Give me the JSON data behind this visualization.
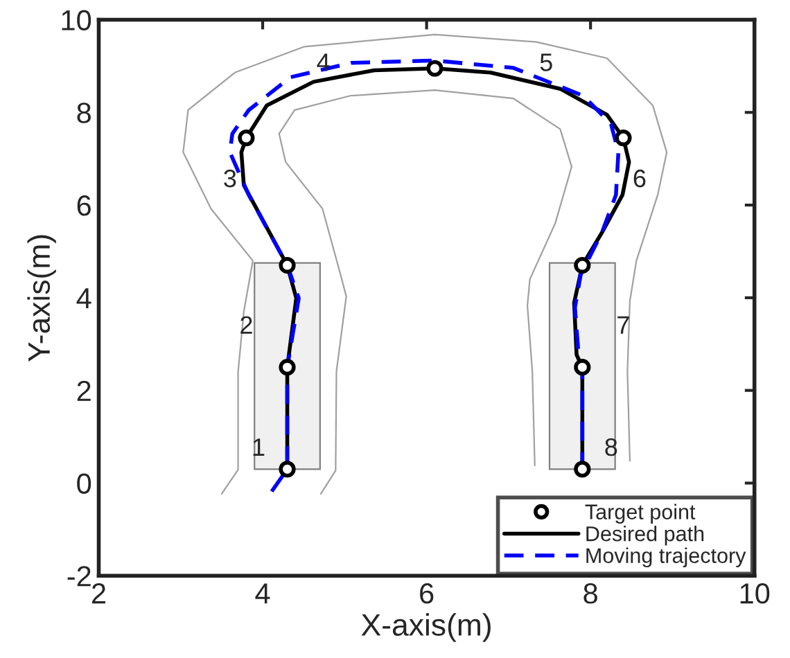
{
  "chart_data": {
    "type": "line",
    "xlabel": "X-axis(m)",
    "ylabel": "Y-axis(m)",
    "xlim": [
      2,
      10
    ],
    "ylim": [
      -2,
      10
    ],
    "xticks": [
      2,
      4,
      6,
      8,
      10
    ],
    "yticks": [
      -2,
      0,
      2,
      4,
      6,
      8,
      10
    ],
    "grid": false,
    "legend": "bottom right",
    "series": [
      {
        "type": "area",
        "color": "#f0f0f0",
        "x": [
          3.9,
          4.7,
          4.7,
          3.9,
          3.9
        ],
        "values": [
          0.3,
          0.3,
          4.75,
          4.75,
          0.3
        ]
      },
      {
        "type": "area",
        "color": "#f0f0f0",
        "x": [
          7.5,
          8.3,
          8.3,
          7.5,
          7.5
        ],
        "values": [
          0.3,
          0.3,
          4.75,
          4.75,
          0.3
        ]
      },
      {
        "type": "line",
        "color": "#a0a0a0",
        "x": [
          3.5,
          3.7,
          3.7,
          3.77,
          3.88,
          3.37,
          3.03,
          3.09,
          3.66,
          4.51,
          6.1,
          7.34,
          8.2,
          8.76,
          8.93,
          8.82,
          8.56,
          8.48,
          8.45,
          8.48
        ],
        "values": [
          -0.23,
          0.29,
          2.4,
          3.7,
          4.8,
          5.92,
          7.14,
          8.05,
          8.86,
          9.42,
          9.68,
          9.52,
          9.17,
          8.15,
          7.14,
          6.22,
          4.8,
          3.93,
          2.41,
          0.48
        ]
      },
      {
        "type": "line",
        "color": "#a0a0a0",
        "x": [
          4.71,
          4.89,
          4.9,
          5.02,
          4.95,
          4.73,
          4.28,
          4.2,
          4.39,
          5.07,
          6.1,
          7.06,
          7.63,
          7.77,
          7.57,
          7.26,
          7.23,
          7.29,
          7.32
        ],
        "values": [
          -0.23,
          0.27,
          2.41,
          4.03,
          4.5,
          5.92,
          6.93,
          7.54,
          8.05,
          8.36,
          8.48,
          8.3,
          7.64,
          6.83,
          5.61,
          4.4,
          3.83,
          2.41,
          0.38
        ]
      },
      {
        "type": "scatter",
        "name": "Target point",
        "color": "#000000",
        "marker": "circle",
        "x": [
          4.3,
          4.3,
          4.3,
          3.8,
          6.1,
          8.4,
          7.9,
          7.9,
          7.9
        ],
        "values": [
          0.3,
          2.5,
          4.7,
          7.45,
          8.95,
          7.45,
          4.7,
          2.5,
          0.3
        ]
      },
      {
        "name": "Desired path",
        "color": "#000000",
        "line_style": "solid",
        "x": [
          4.3,
          4.3,
          4.41,
          4.3,
          3.77,
          3.74,
          3.8,
          4.05,
          4.62,
          5.36,
          6.1,
          6.78,
          7.63,
          8.2,
          8.4,
          8.47,
          8.39,
          8.14,
          7.9,
          7.8,
          7.83,
          7.9,
          7.9
        ],
        "values": [
          0.3,
          2.5,
          3.99,
          4.7,
          6.43,
          7.14,
          7.45,
          8.15,
          8.66,
          8.91,
          8.95,
          8.86,
          8.51,
          7.95,
          7.45,
          6.93,
          6.22,
          5.41,
          4.7,
          3.89,
          2.77,
          2.5,
          0.3
        ]
      },
      {
        "name": "Moving trajectory",
        "color": "#0000ff",
        "line_style": "dashed",
        "x": [
          4.11,
          4.3,
          4.3,
          4.44,
          4.34,
          4.3,
          3.83,
          3.6,
          3.63,
          3.83,
          4.34,
          5.08,
          6.1,
          7.06,
          7.91,
          8.25,
          8.34,
          8.31,
          8.14,
          7.88,
          7.81,
          7.85,
          7.9,
          7.9
        ],
        "values": [
          -0.18,
          0.3,
          2.5,
          3.99,
          4.5,
          4.7,
          6.22,
          7.14,
          7.54,
          8.05,
          8.76,
          9.07,
          9.12,
          8.96,
          8.36,
          7.75,
          7.14,
          6.22,
          5.41,
          4.5,
          3.79,
          2.87,
          2.5,
          0.3
        ]
      }
    ],
    "annotations": [
      "1",
      "2",
      "3",
      "4",
      "5",
      "6",
      "7",
      "8"
    ]
  }
}
